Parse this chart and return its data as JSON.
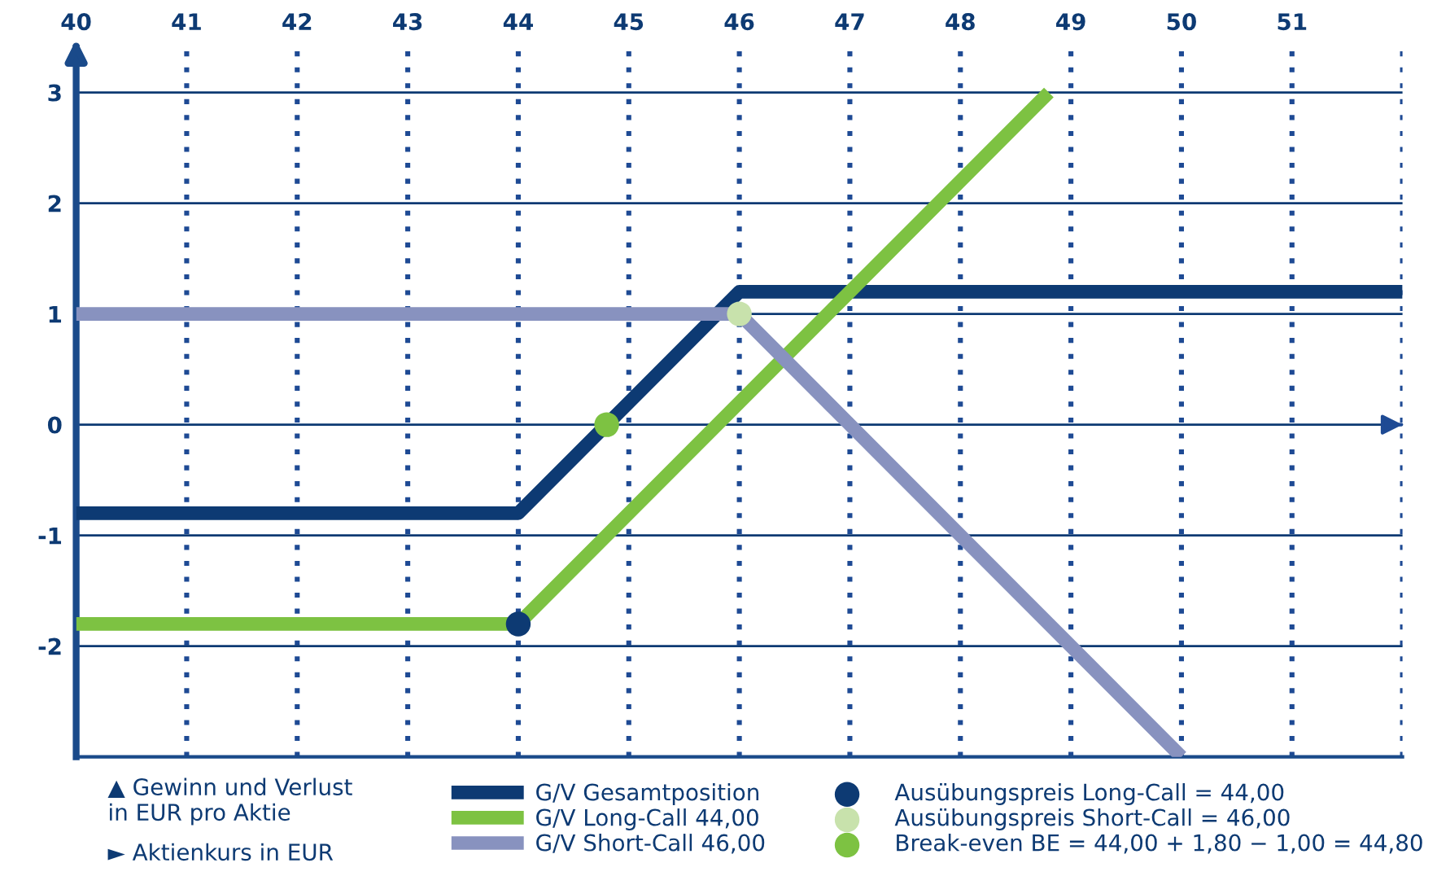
{
  "chart_data": {
    "type": "line",
    "annotations": [
      "▲ Gewinn und Verlust\nin EUR pro Aktie",
      "► Aktienkurs in EUR"
    ],
    "xlim": [
      40,
      52
    ],
    "ylim": [
      -3,
      3.4
    ],
    "xticks": [
      40,
      41,
      42,
      43,
      44,
      45,
      46,
      47,
      48,
      49,
      50,
      51,
      {
        "value": 52,
        "label": null
      }
    ],
    "yticks": [
      -2,
      -1,
      0,
      1,
      2,
      3
    ],
    "grid": true,
    "legend": "bottom",
    "marker": "none",
    "line_style": "solid",
    "series": [
      {
        "name": "G/V Gesamtposition",
        "color": "#0d3a73",
        "x": [
          40,
          44,
          46,
          52
        ],
        "values": [
          -0.8,
          -0.8,
          1.2,
          1.2
        ]
      },
      {
        "name": "G/V Long-Call 44,00",
        "color": "#7dc242",
        "x": [
          40,
          44,
          48.8
        ],
        "values": [
          -1.8,
          -1.8,
          3.0
        ]
      },
      {
        "name": "G/V Short-Call 46,00",
        "color": "#8892bf",
        "x": [
          40,
          46,
          50
        ],
        "values": [
          1.0,
          1.0,
          -3.0
        ]
      },
      {
        "name": "Ausübungspreis Long-Call = 44,00",
        "type": "scatter",
        "marker": "circle",
        "color": "#0d3a73",
        "x": [
          44
        ],
        "values": [
          -1.8
        ]
      },
      {
        "name": "Ausübungspreis Short-Call = 46,00",
        "type": "scatter",
        "marker": "circle",
        "color": "#c8e2ac",
        "x": [
          46
        ],
        "values": [
          1.0
        ]
      },
      {
        "name": "Break-even BE = 44,00 + 1,80 − 1,00 = 44,80",
        "type": "scatter",
        "marker": "circle",
        "color": "#7dc242",
        "x": [
          44.8
        ],
        "values": [
          0.0
        ]
      }
    ]
  }
}
